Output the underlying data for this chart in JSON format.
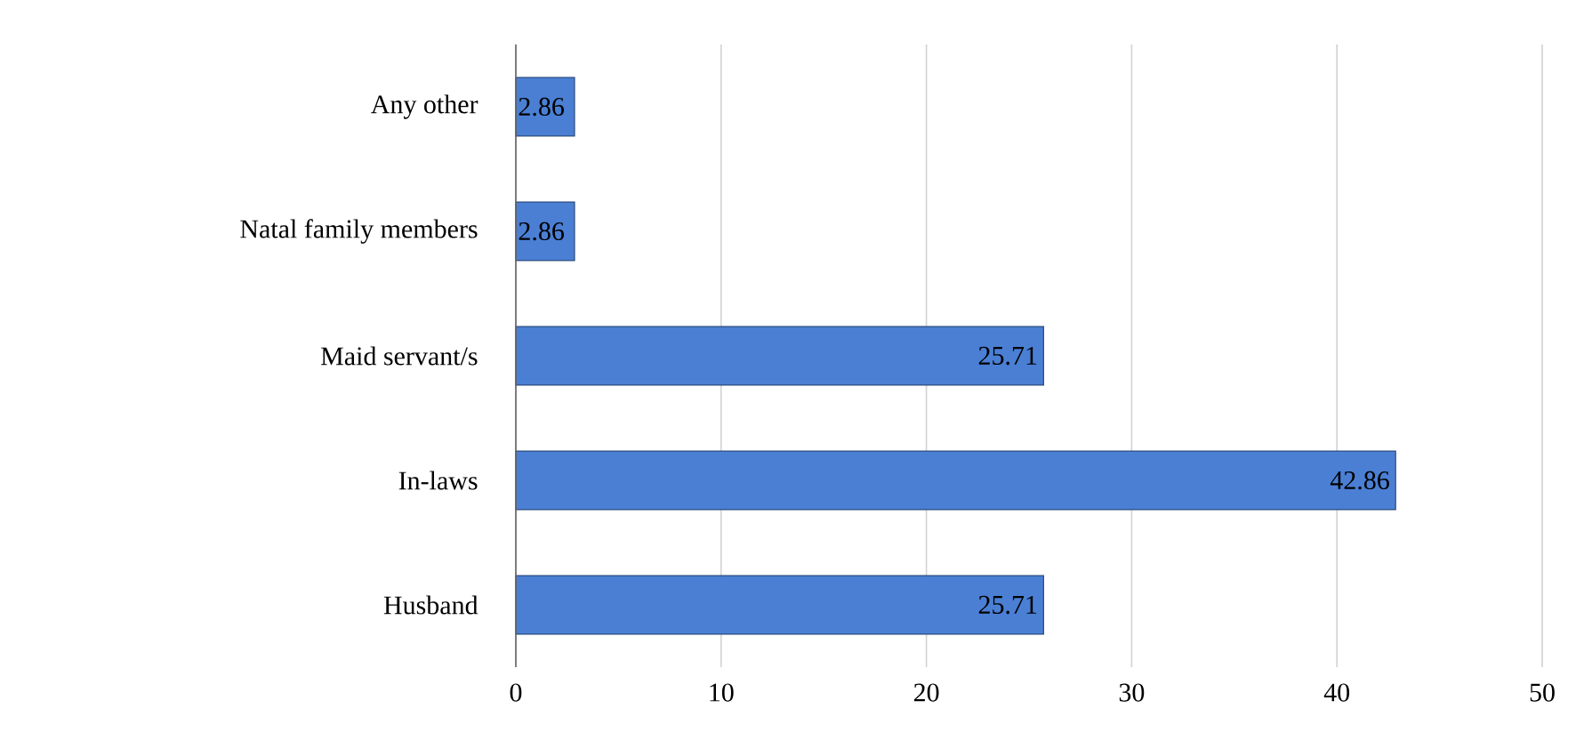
{
  "chart_data": {
    "type": "bar",
    "orientation": "horizontal",
    "categories": [
      "Any other",
      "Natal family members",
      "Maid servant/s",
      "In-laws",
      "Husband"
    ],
    "values": [
      2.86,
      2.86,
      25.71,
      42.86,
      25.71
    ],
    "color": "#4a7fd4",
    "xlim": [
      0,
      50
    ],
    "xticks": [
      0,
      10,
      20,
      30,
      40,
      50
    ],
    "grid": "x",
    "data_labels": true
  }
}
